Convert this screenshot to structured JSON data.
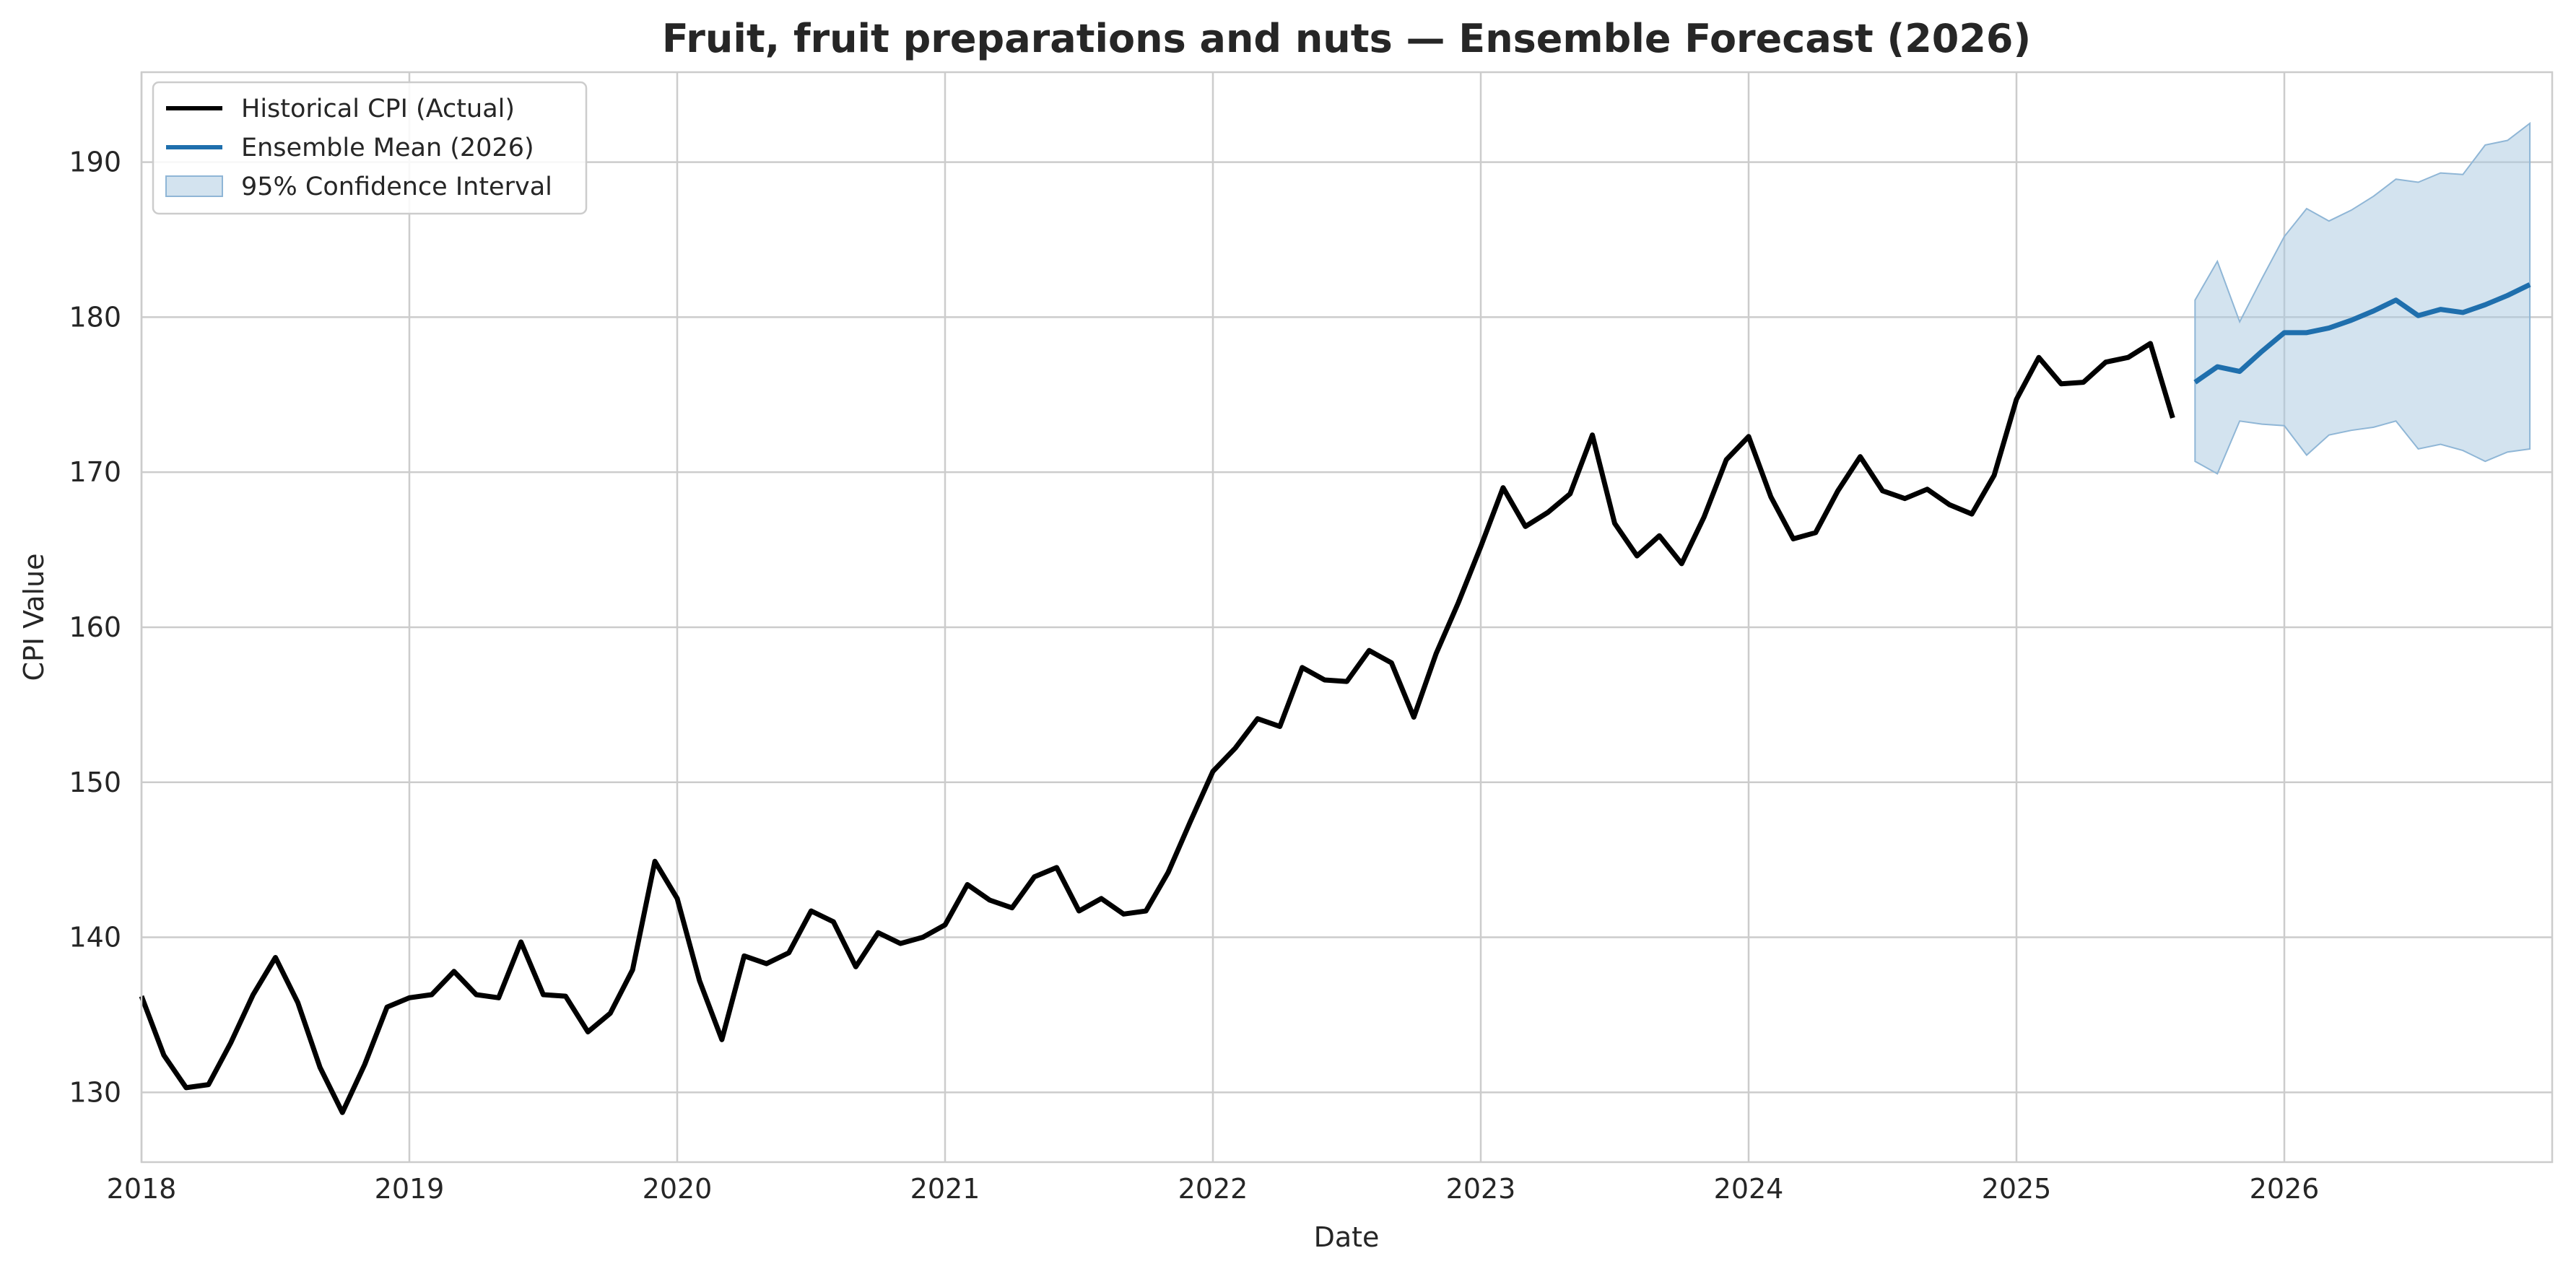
{
  "chart_data": {
    "type": "line",
    "title": "Fruit, fruit preparations and nuts — Ensemble Forecast (2026)",
    "xlabel": "Date",
    "ylabel": "CPI Value",
    "xlim": [
      "2018-01",
      "2027-01"
    ],
    "ylim": [
      125.5,
      195.8
    ],
    "x_ticks": [
      "2018",
      "2019",
      "2020",
      "2021",
      "2022",
      "2023",
      "2024",
      "2025",
      "2026"
    ],
    "y_ticks": [
      130,
      140,
      150,
      160,
      170,
      180,
      190
    ],
    "grid": true,
    "legend_position": "top-left",
    "colors": {
      "historical": "#000000",
      "forecast": "#1f6fad",
      "ci_fill": "#a8c8e0",
      "ci_edge": "#8fb6d6"
    },
    "series": [
      {
        "name": "Historical CPI (Actual)",
        "start": "2018-01",
        "frequency": "monthly",
        "values": [
          136.2,
          132.4,
          130.3,
          130.5,
          133.2,
          136.3,
          138.7,
          135.8,
          131.6,
          128.7,
          131.8,
          135.5,
          136.1,
          136.3,
          137.8,
          136.3,
          136.1,
          139.7,
          136.3,
          136.2,
          133.9,
          135.1,
          137.9,
          144.9,
          142.5,
          137.2,
          133.4,
          138.8,
          138.3,
          139.0,
          141.7,
          141.0,
          138.1,
          140.3,
          139.6,
          140.0,
          140.8,
          143.4,
          142.4,
          141.9,
          143.9,
          144.5,
          141.7,
          142.5,
          141.5,
          141.7,
          144.2,
          147.5,
          150.7,
          152.2,
          154.1,
          153.6,
          157.4,
          156.6,
          156.5,
          158.5,
          157.7,
          154.2,
          158.3,
          161.6,
          165.2,
          169.0,
          166.5,
          167.4,
          168.6,
          172.4,
          166.7,
          164.6,
          165.9,
          164.1,
          167.1,
          170.8,
          172.3,
          168.4,
          165.7,
          166.1,
          168.8,
          171.0,
          168.8,
          168.3,
          168.9,
          167.9,
          167.3,
          169.8,
          174.7,
          177.4,
          175.7,
          175.8,
          177.1,
          177.4,
          178.3,
          173.5
        ]
      },
      {
        "name": "Ensemble Mean (2026)",
        "start": "2025-09",
        "frequency": "monthly",
        "values": [
          175.8,
          176.8,
          176.5,
          177.8,
          179.0,
          179.0,
          179.3,
          179.8,
          180.4,
          181.1,
          180.1,
          180.5,
          180.3,
          180.8,
          181.4,
          182.1
        ]
      }
    ],
    "confidence_interval": {
      "name": "95% Confidence Interval",
      "start": "2025-09",
      "lower": [
        170.7,
        169.9,
        173.3,
        173.1,
        173.0,
        171.1,
        172.4,
        172.7,
        172.9,
        173.3,
        171.5,
        171.8,
        171.4,
        170.7,
        171.3,
        171.5
      ],
      "upper": [
        181.1,
        183.6,
        179.7,
        182.5,
        185.2,
        187.0,
        186.2,
        186.9,
        187.8,
        188.9,
        188.7,
        189.3,
        189.2,
        191.1,
        191.4,
        192.5
      ]
    }
  }
}
